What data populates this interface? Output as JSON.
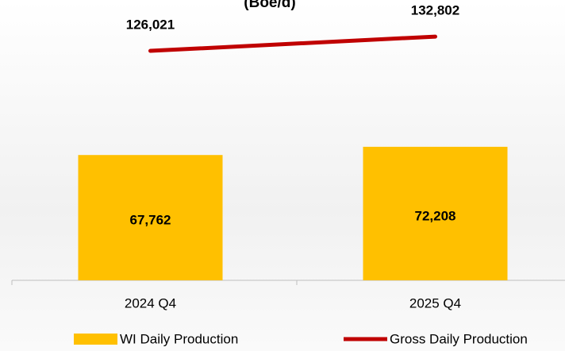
{
  "chart_data": {
    "type": "bar-line",
    "title": "(Boe/d)",
    "categories": [
      "2024 Q4",
      "2025 Q4"
    ],
    "series": [
      {
        "name": "WI Daily Production",
        "color": "#ffc000",
        "type": "bar",
        "values": [
          67762,
          72208
        ],
        "value_labels": [
          "67,762",
          "72,208"
        ]
      },
      {
        "name": "Gross Daily Production",
        "color": "#c00000",
        "type": "line",
        "axis": "y2",
        "values": [
          126021,
          132802
        ],
        "value_labels": [
          "126,021",
          "132,802"
        ]
      }
    ],
    "ylim": [
      0,
      140000
    ],
    "y2lim": [
      17000,
      140000
    ],
    "legend": "bottom"
  }
}
